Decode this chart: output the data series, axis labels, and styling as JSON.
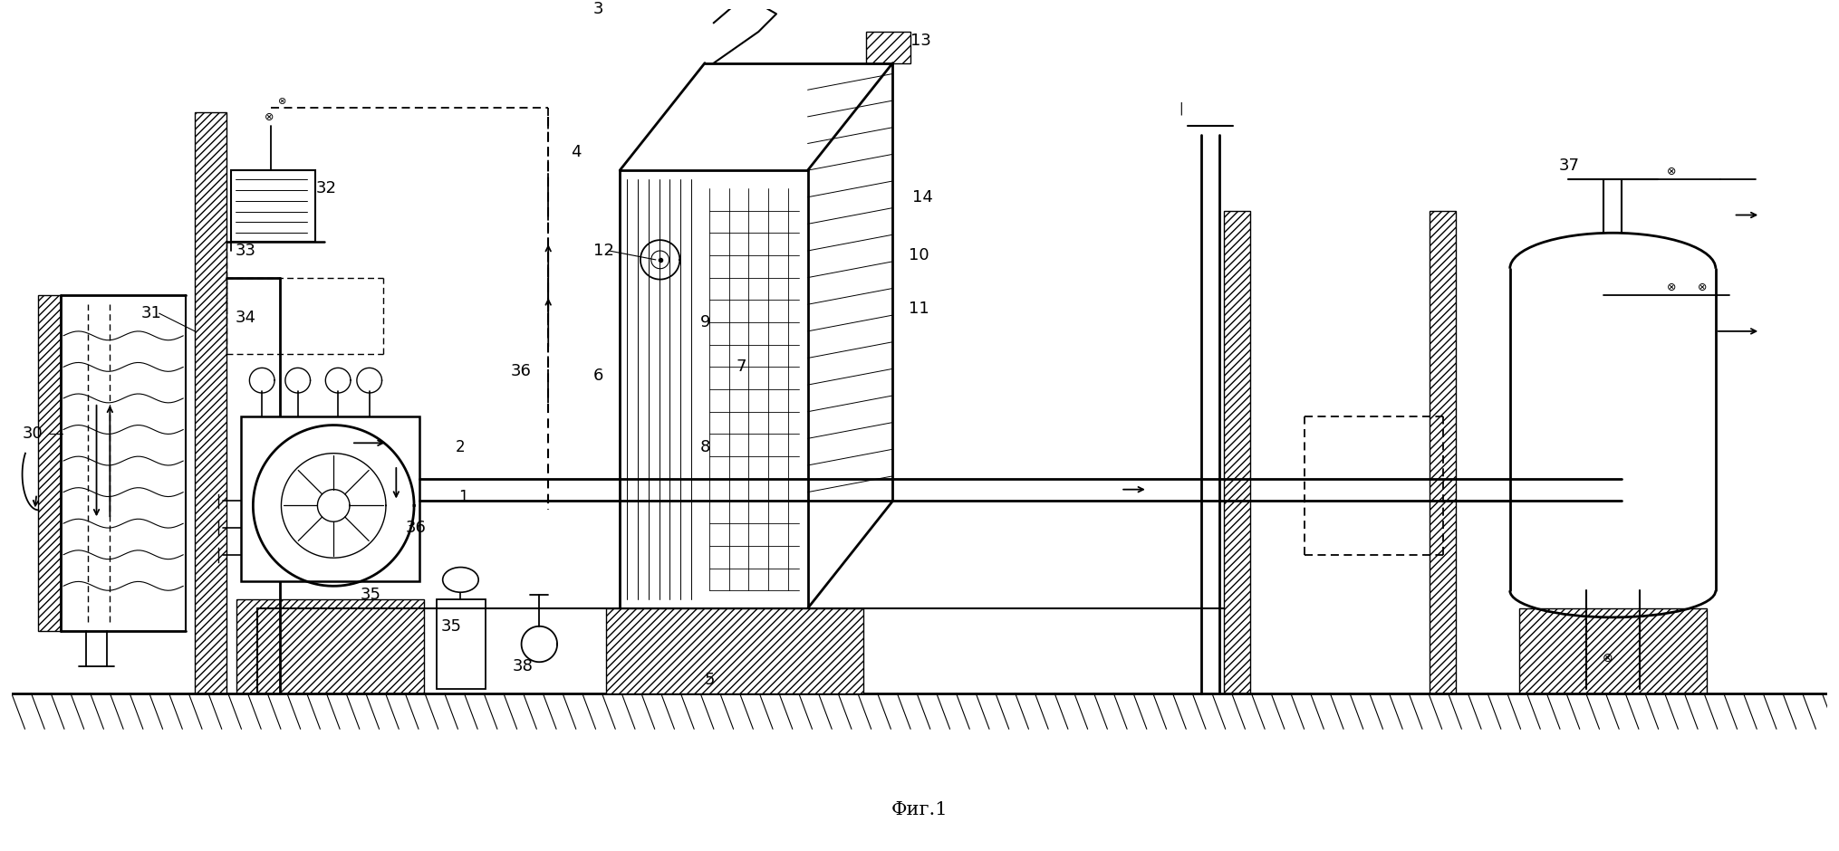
{
  "title": "Фиг.1",
  "bg": "#ffffff",
  "lc": "#000000",
  "figsize": [
    20.3,
    9.4
  ],
  "dpi": 100
}
